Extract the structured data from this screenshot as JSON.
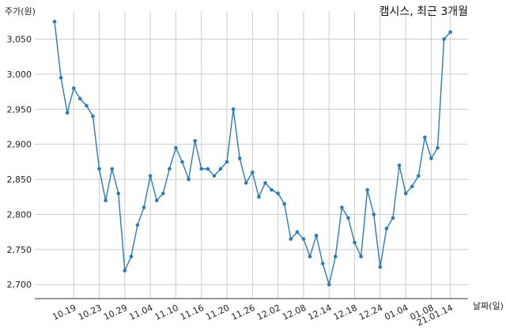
{
  "chart_data": {
    "type": "line",
    "title": "캠시스, 최근 3개월",
    "xlabel": "날짜(일)",
    "ylabel": "주가(원)",
    "ylim": [
      2680,
      3090
    ],
    "yticks": [
      2700,
      2750,
      2800,
      2850,
      2900,
      2950,
      3000,
      3050
    ],
    "ytick_labels": [
      "2,700",
      "2,750",
      "2,800",
      "2,850",
      "2,900",
      "2,950",
      "3,000",
      "3,050"
    ],
    "xtick_labels": [
      "10.19",
      "10.23",
      "10.29",
      "11.04",
      "11.10",
      "11.16",
      "11.20",
      "11.26",
      "12.02",
      "12.08",
      "12.14",
      "12.18",
      "12.24",
      "01.04",
      "01.08",
      "21.01.14"
    ],
    "xtick_positions": [
      3,
      7,
      11,
      15,
      19,
      23,
      27,
      31,
      35,
      39,
      43,
      47,
      51,
      55,
      59,
      62
    ],
    "grid": true,
    "series": [
      {
        "color": "#2d7bb6",
        "values": [
          3075,
          2995,
          2945,
          2980,
          2965,
          2955,
          2940,
          2865,
          2820,
          2865,
          2830,
          2720,
          2740,
          2785,
          2810,
          2855,
          2820,
          2830,
          2865,
          2895,
          2875,
          2850,
          2905,
          2865,
          2865,
          2855,
          2865,
          2875,
          2950,
          2880,
          2845,
          2860,
          2825,
          2845,
          2835,
          2830,
          2815,
          2765,
          2775,
          2765,
          2740,
          2770,
          2730,
          2700,
          2740,
          2810,
          2795,
          2760,
          2740,
          2835,
          2800,
          2725,
          2780,
          2795,
          2870,
          2830,
          2840,
          2855,
          2910,
          2880,
          2895,
          3050,
          3060
        ]
      }
    ]
  }
}
